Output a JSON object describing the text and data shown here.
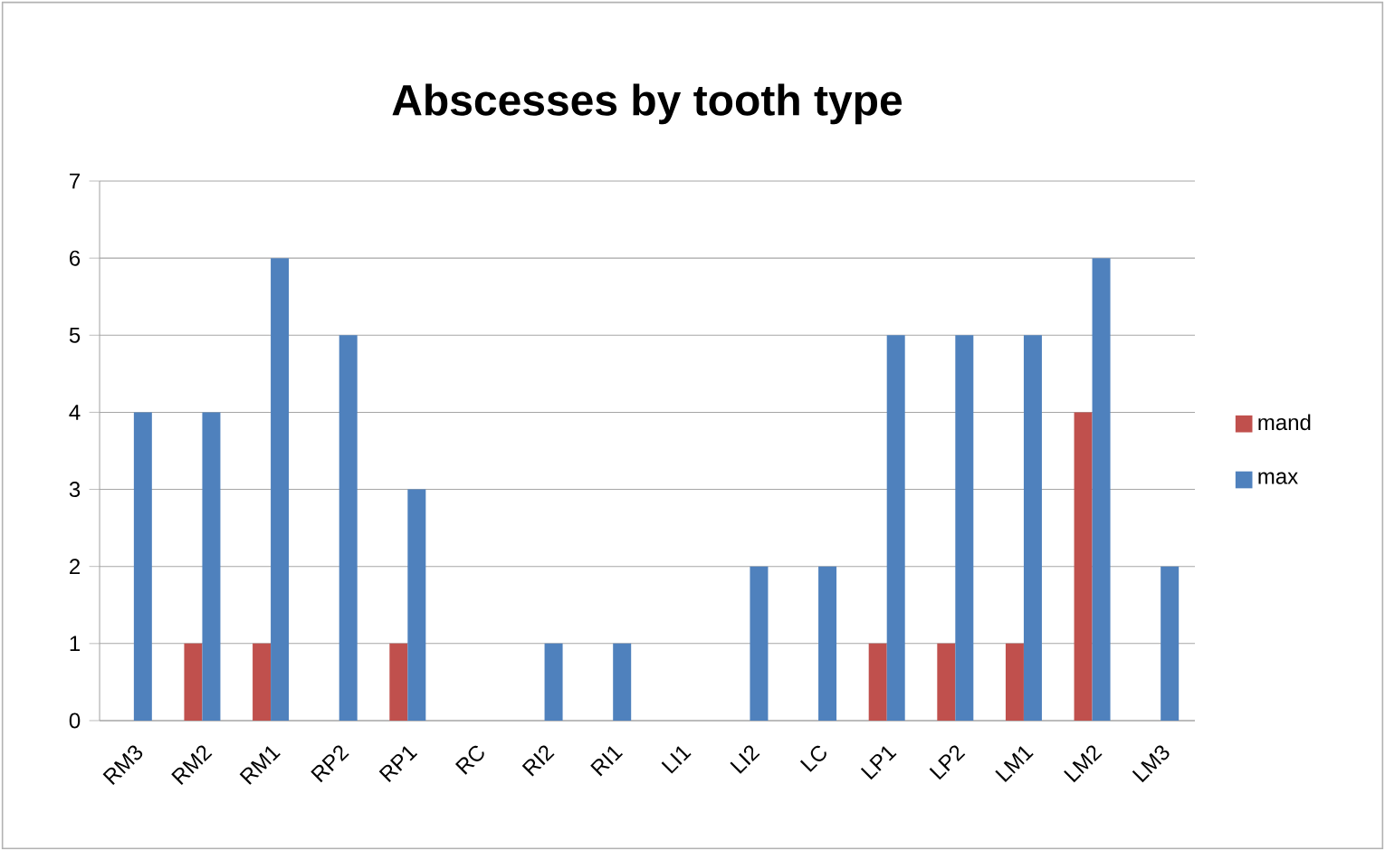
{
  "chart_data": {
    "type": "bar",
    "title": "Abscesses by tooth type",
    "categories": [
      "RM3",
      "RM2",
      "RM1",
      "RP2",
      "RP1",
      "RC",
      "RI2",
      "RI1",
      "LI1",
      "LI2",
      "LC",
      "LP1",
      "LP2",
      "LM1",
      "LM2",
      "LM3"
    ],
    "series": [
      {
        "name": "mand",
        "color": "#c0504d",
        "values": [
          0,
          1,
          1,
          0,
          1,
          0,
          0,
          0,
          0,
          0,
          0,
          1,
          1,
          1,
          4,
          0
        ]
      },
      {
        "name": "max",
        "color": "#4f81bd",
        "values": [
          4,
          4,
          6,
          5,
          3,
          0,
          1,
          1,
          0,
          2,
          2,
          5,
          5,
          5,
          6,
          2
        ]
      }
    ],
    "ylim": [
      0,
      7
    ],
    "yticks": [
      0,
      1,
      2,
      3,
      4,
      5,
      6,
      7
    ],
    "grid": "y",
    "legend": "right"
  }
}
